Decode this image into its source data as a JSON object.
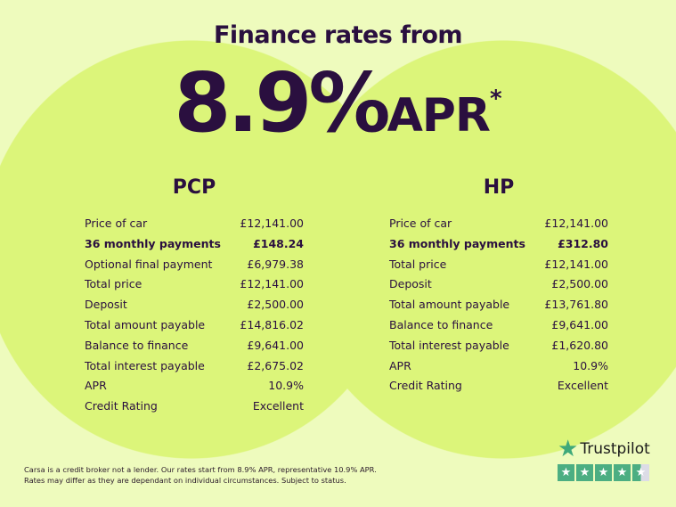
{
  "header": {
    "title": "Finance rates from",
    "rate": "8.9%",
    "apr": "APR",
    "asterisk": "*"
  },
  "pcp": {
    "heading": "PCP",
    "rows": [
      {
        "label": "Price of car",
        "value": "£12,141.00"
      },
      {
        "label": "36 monthly payments",
        "value": "£148.24",
        "bold": true
      },
      {
        "label": "Optional final payment",
        "value": "£6,979.38"
      },
      {
        "label": "Total price",
        "value": "£12,141.00"
      },
      {
        "label": "Deposit",
        "value": "£2,500.00"
      },
      {
        "label": "Total amount payable",
        "value": "£14,816.02"
      },
      {
        "label": "Balance to finance",
        "value": "£9,641.00"
      },
      {
        "label": "Total interest payable",
        "value": "£2,675.02"
      },
      {
        "label": "APR",
        "value": "10.9%"
      },
      {
        "label": "Credit Rating",
        "value": "Excellent"
      }
    ]
  },
  "hp": {
    "heading": "HP",
    "rows": [
      {
        "label": "Price of car",
        "value": "£12,141.00"
      },
      {
        "label": "36 monthly payments",
        "value": "£312.80",
        "bold": true
      },
      {
        "label": "Total price",
        "value": "£12,141.00"
      },
      {
        "label": "Deposit",
        "value": "£2,500.00"
      },
      {
        "label": "Total amount payable",
        "value": "£13,761.80"
      },
      {
        "label": "Balance to finance",
        "value": "£9,641.00"
      },
      {
        "label": "Total interest payable",
        "value": "£1,620.80"
      },
      {
        "label": "APR",
        "value": "10.9%"
      },
      {
        "label": "Credit Rating",
        "value": "Excellent"
      }
    ]
  },
  "disclaimer": {
    "line1": "Carsa is a credit broker not a lender. Our rates start from 8.9% APR, representative 10.9% APR.",
    "line2": "Rates may differ as they are dependant on individual circumstances. Subject to status."
  },
  "trustpilot": {
    "name": "Trustpilot",
    "rating_stars": 4.5,
    "max_stars": 5,
    "color": "#4cae82"
  },
  "colors": {
    "background": "#eefbbd",
    "circle": "#dcf57a",
    "text": "#2a0f3f"
  }
}
